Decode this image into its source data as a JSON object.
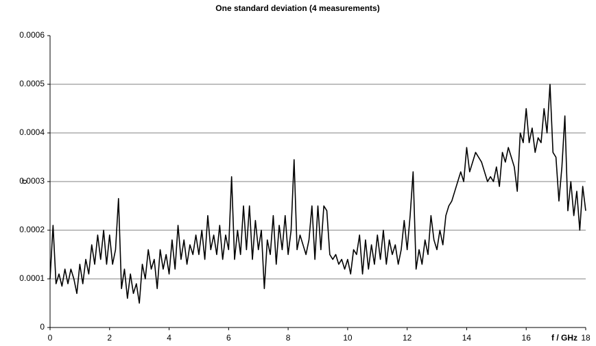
{
  "chart_data": {
    "type": "line",
    "title": "One standard deviation (4 measurements)",
    "xlabel": "f / GHz",
    "ylabel": "σ",
    "x": [
      0,
      0.1,
      0.2,
      0.3,
      0.4,
      0.5,
      0.6,
      0.7,
      0.8,
      0.9,
      1,
      1.1,
      1.2,
      1.3,
      1.4,
      1.5,
      1.6,
      1.7,
      1.8,
      1.9,
      2,
      2.1,
      2.2,
      2.3,
      2.4,
      2.5,
      2.6,
      2.7,
      2.8,
      2.9,
      3,
      3.1,
      3.2,
      3.3,
      3.4,
      3.5,
      3.6,
      3.7,
      3.8,
      3.9,
      4,
      4.1,
      4.2,
      4.3,
      4.4,
      4.5,
      4.6,
      4.7,
      4.8,
      4.9,
      5,
      5.1,
      5.2,
      5.3,
      5.4,
      5.5,
      5.6,
      5.7,
      5.8,
      5.9,
      6,
      6.1,
      6.2,
      6.3,
      6.4,
      6.5,
      6.6,
      6.7,
      6.8,
      6.9,
      7,
      7.1,
      7.2,
      7.3,
      7.4,
      7.5,
      7.6,
      7.7,
      7.8,
      7.9,
      8,
      8.1,
      8.2,
      8.3,
      8.4,
      8.5,
      8.6,
      8.7,
      8.8,
      8.9,
      9,
      9.1,
      9.2,
      9.3,
      9.4,
      9.5,
      9.6,
      9.7,
      9.8,
      9.9,
      10,
      10.1,
      10.2,
      10.3,
      10.4,
      10.5,
      10.6,
      10.7,
      10.8,
      10.9,
      11,
      11.1,
      11.2,
      11.3,
      11.4,
      11.5,
      11.6,
      11.7,
      11.8,
      11.9,
      12,
      12.1,
      12.2,
      12.3,
      12.4,
      12.5,
      12.6,
      12.7,
      12.8,
      12.9,
      13,
      13.1,
      13.2,
      13.3,
      13.4,
      13.5,
      13.6,
      13.7,
      13.8,
      13.9,
      14,
      14.1,
      14.2,
      14.3,
      14.4,
      14.5,
      14.6,
      14.7,
      14.8,
      14.9,
      15,
      15.1,
      15.2,
      15.3,
      15.4,
      15.5,
      15.6,
      15.7,
      15.8,
      15.9,
      16,
      16.1,
      16.2,
      16.3,
      16.4,
      16.5,
      16.6,
      16.7,
      16.8,
      16.9,
      17,
      17.1,
      17.2,
      17.3,
      17.4,
      17.5,
      17.6,
      17.7,
      17.8,
      17.9,
      18
    ],
    "series": [
      {
        "color": "#000000",
        "values": [
          0.0001,
          0.00021,
          9e-05,
          0.00011,
          8.5e-05,
          0.00012,
          9e-05,
          0.00012,
          0.0001,
          7e-05,
          0.00013,
          9e-05,
          0.00014,
          0.00011,
          0.00017,
          0.00013,
          0.00019,
          0.00014,
          0.0002,
          0.00013,
          0.00019,
          0.00013,
          0.00016,
          0.000265,
          8e-05,
          0.00012,
          6e-05,
          0.00011,
          7e-05,
          9e-05,
          5e-05,
          0.00013,
          0.0001,
          0.00016,
          0.00012,
          0.00014,
          8e-05,
          0.00016,
          0.00012,
          0.00015,
          0.00011,
          0.00018,
          0.00012,
          0.00021,
          0.00014,
          0.00018,
          0.00013,
          0.00017,
          0.00015,
          0.00019,
          0.00015,
          0.0002,
          0.00014,
          0.00023,
          0.00016,
          0.00019,
          0.00015,
          0.00021,
          0.00014,
          0.00019,
          0.00016,
          0.00031,
          0.00014,
          0.0002,
          0.00015,
          0.00025,
          0.00016,
          0.00025,
          0.00014,
          0.00022,
          0.00016,
          0.0002,
          8e-05,
          0.00018,
          0.00015,
          0.00023,
          0.00013,
          0.00021,
          0.00016,
          0.00023,
          0.00015,
          0.0002,
          0.000345,
          0.00016,
          0.00019,
          0.00017,
          0.00015,
          0.00018,
          0.00025,
          0.00014,
          0.00025,
          0.00016,
          0.00025,
          0.00024,
          0.00015,
          0.00014,
          0.00015,
          0.00013,
          0.00014,
          0.00012,
          0.00014,
          0.00011,
          0.00016,
          0.00015,
          0.00019,
          0.00011,
          0.00018,
          0.00012,
          0.00017,
          0.00013,
          0.00019,
          0.00014,
          0.0002,
          0.00013,
          0.00018,
          0.00015,
          0.00017,
          0.00013,
          0.00016,
          0.00022,
          0.00016,
          0.00023,
          0.00032,
          0.00012,
          0.00016,
          0.00013,
          0.00018,
          0.00015,
          0.00023,
          0.00018,
          0.00016,
          0.0002,
          0.00017,
          0.00023,
          0.00025,
          0.00026,
          0.00028,
          0.0003,
          0.00032,
          0.0003,
          0.00037,
          0.00032,
          0.00034,
          0.00036,
          0.00035,
          0.00034,
          0.00032,
          0.0003,
          0.00031,
          0.0003,
          0.00033,
          0.00029,
          0.00036,
          0.00034,
          0.00037,
          0.00035,
          0.00033,
          0.00028,
          0.0004,
          0.00038,
          0.00045,
          0.00038,
          0.00041,
          0.00036,
          0.00039,
          0.00038,
          0.00045,
          0.0004,
          0.0005,
          0.00036,
          0.00035,
          0.00026,
          0.00033,
          0.000435,
          0.00024,
          0.0003,
          0.00023,
          0.00028,
          0.0002,
          0.00029,
          0.00024
        ]
      }
    ],
    "xlim": [
      0,
      18
    ],
    "xticks": [
      0,
      2,
      4,
      6,
      8,
      10,
      12,
      14,
      16,
      18
    ],
    "ylim": [
      0,
      0.0006
    ],
    "yticks": [
      0,
      0.0001,
      0.0002,
      0.0003,
      0.0004,
      0.0005,
      0.0006
    ],
    "grid": true
  }
}
